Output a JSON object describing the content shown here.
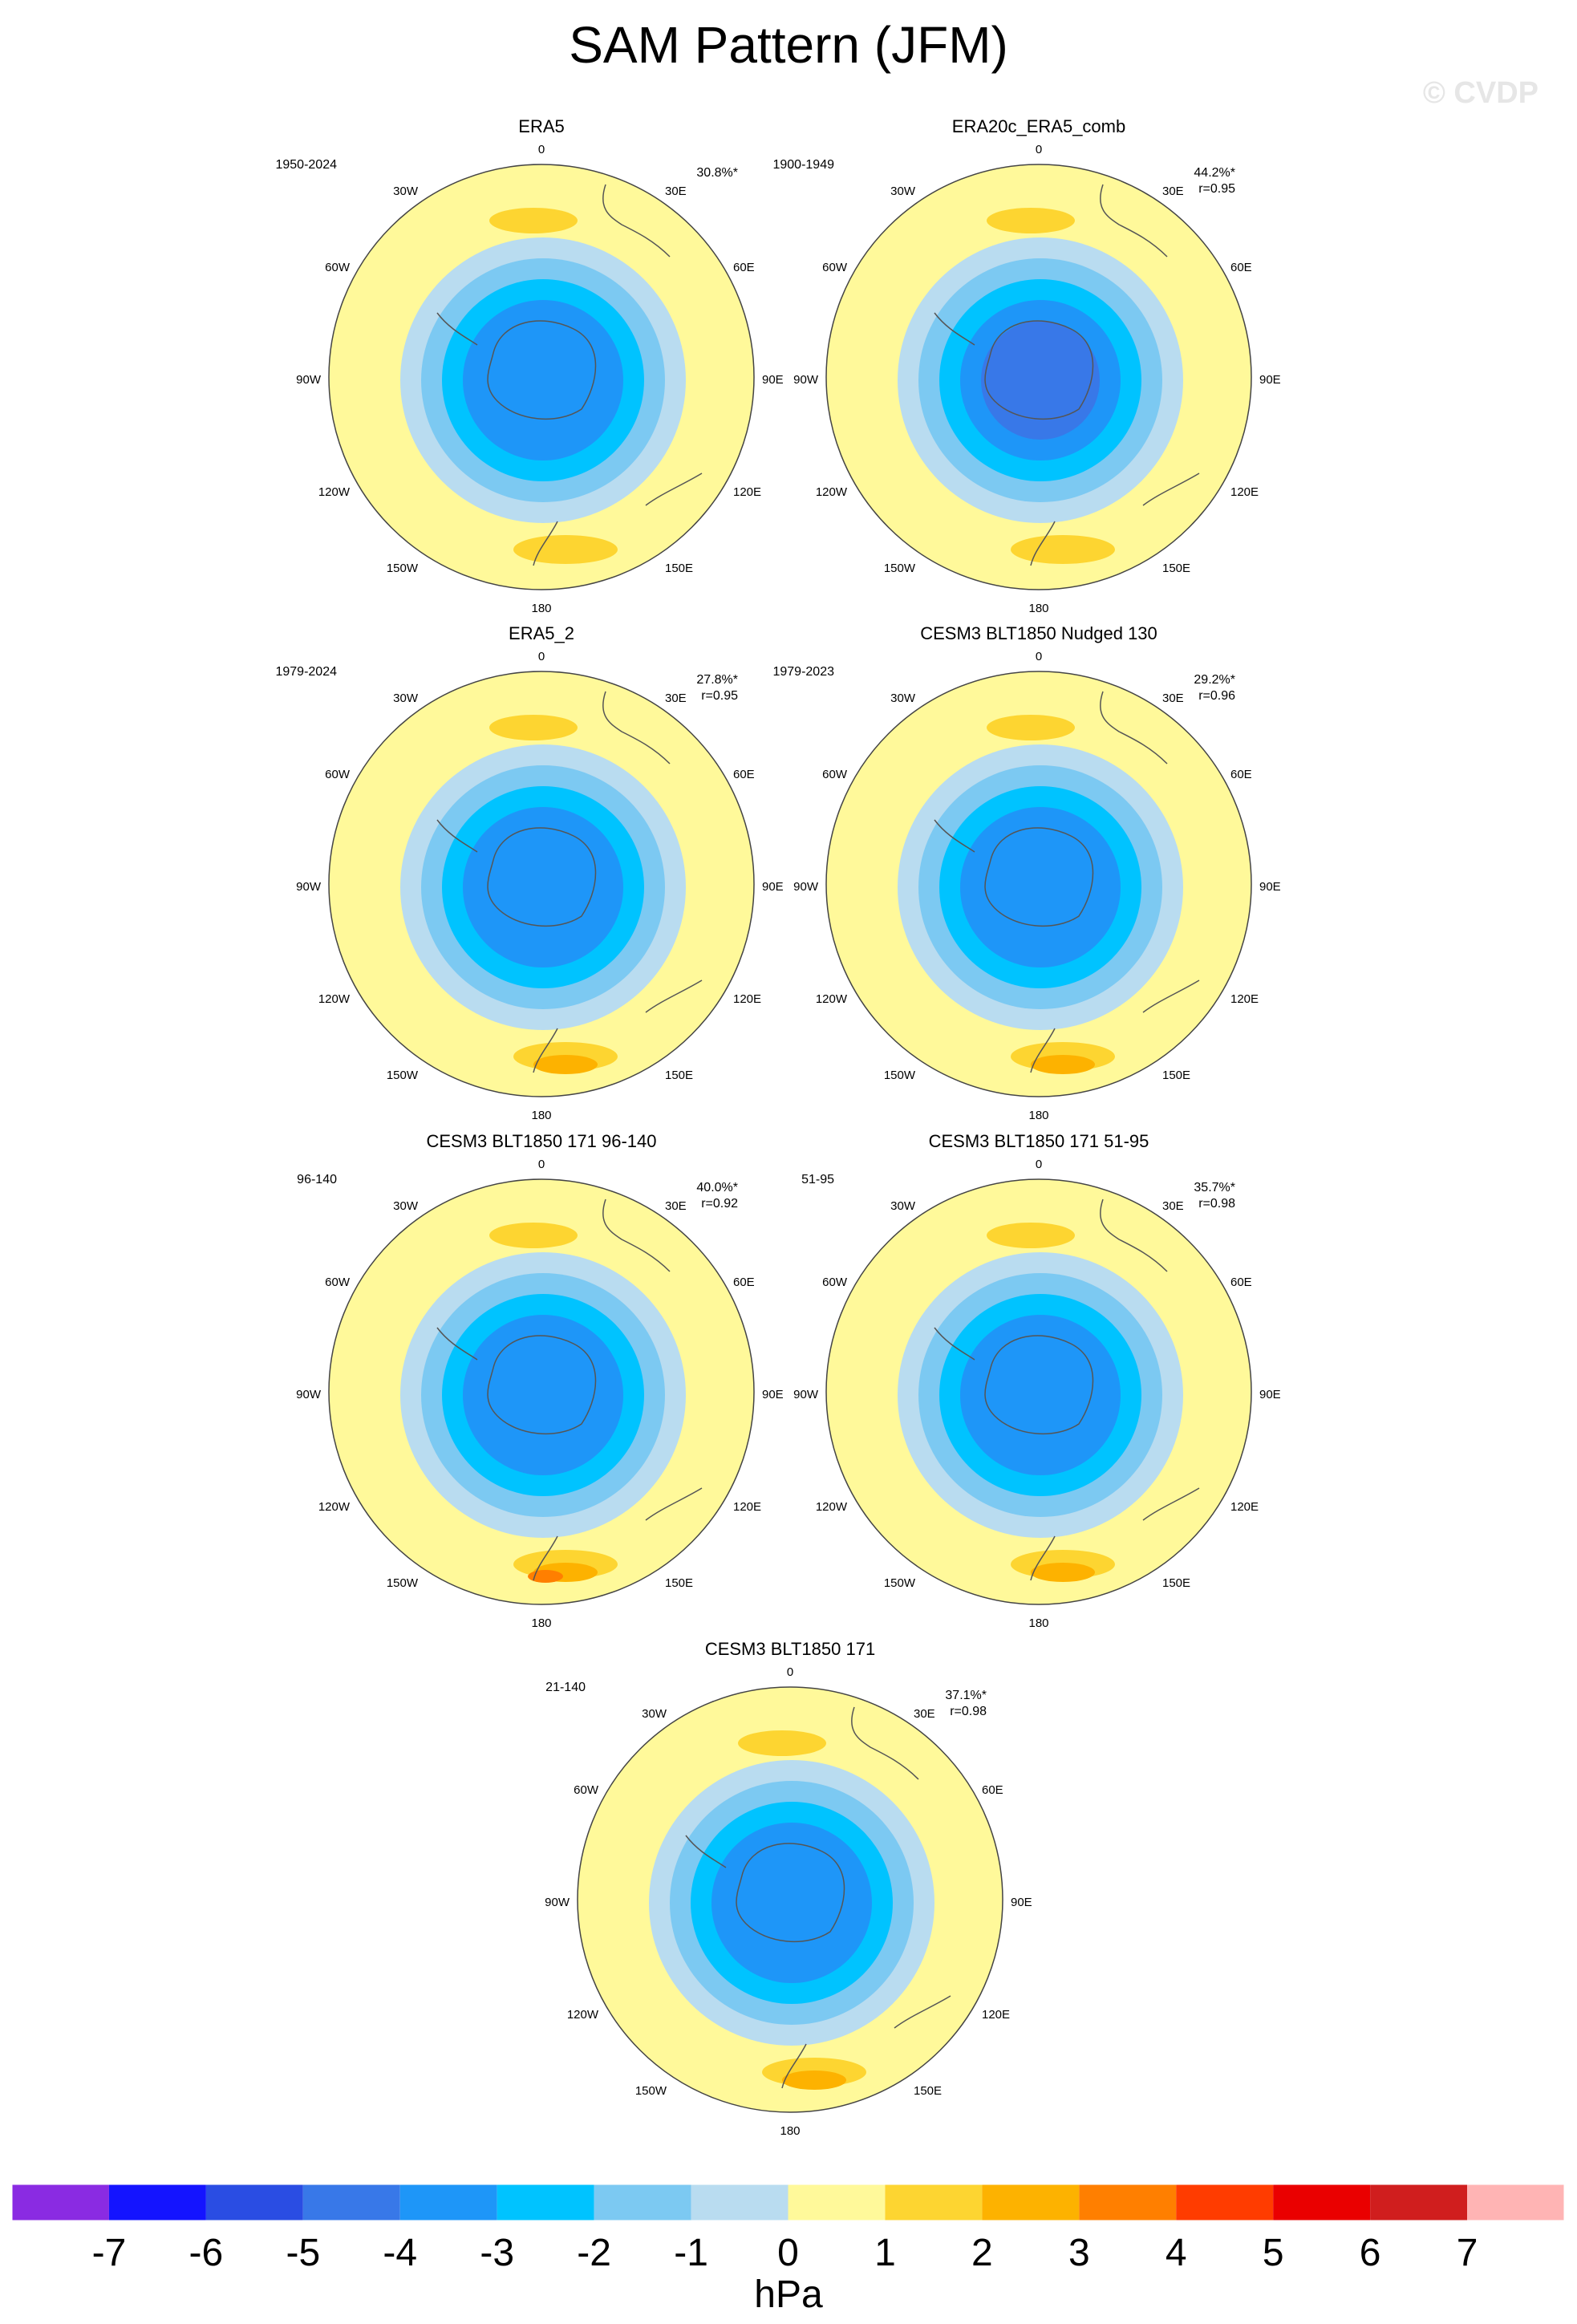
{
  "title": "SAM Pattern (JFM)",
  "watermark": "© CVDP",
  "colors": {
    "land_outline": "#555555",
    "circle_outline": "#444444",
    "levels": [
      "#8a2be2",
      "#1414ff",
      "#2a4de3",
      "#3878e8",
      "#1e96f8",
      "#00c3ff",
      "#7cc9f2",
      "#b9dcf0",
      "#fff99a",
      "#fdd531",
      "#fdb200",
      "#ff7f00",
      "#ff3c00",
      "#ea0000",
      "#d01e1e",
      "#ffb4b4"
    ]
  },
  "chart_data": {
    "type": "heatmap",
    "projection": "south-polar-stereographic",
    "variable": "SAM Pattern",
    "season": "JFM",
    "units": "hPa",
    "colorbar": {
      "label": "hPa",
      "ticks": [
        "-7",
        "-6",
        "-5",
        "-4",
        "-3",
        "-2",
        "-1",
        "0",
        "1",
        "2",
        "3",
        "4",
        "5",
        "6",
        "7"
      ],
      "levels": [
        -7,
        -6,
        -5,
        -4,
        -3,
        -2,
        -1,
        0,
        1,
        2,
        3,
        4,
        5,
        6,
        7
      ]
    },
    "map_labels": {
      "top": "0",
      "bottom": "180",
      "left": "90W",
      "right": "90E",
      "upper_left": "30W",
      "upper_right": "30E",
      "mid_left_upper": "60W",
      "mid_right_upper": "60E",
      "mid_left_lower": "120W",
      "mid_right_lower": "120E",
      "low_left": "150W",
      "low_right": "150E"
    },
    "panels": [
      {
        "name": "ERA5",
        "years": "1950-2024",
        "pct": "30.8%*",
        "corr": "",
        "min_value": -4,
        "max_value": 1
      },
      {
        "name": "ERA20c_ERA5_comb",
        "years": "1900-1949",
        "pct": "44.2%*",
        "corr": "r=0.95",
        "min_value": -5,
        "max_value": 1
      },
      {
        "name": "ERA5_2",
        "years": "1979-2024",
        "pct": "27.8%*",
        "corr": "r=0.95",
        "min_value": -4,
        "max_value": 2
      },
      {
        "name": "CESM3 BLT1850 Nudged 130",
        "years": "1979-2023",
        "pct": "29.2%*",
        "corr": "r=0.96",
        "min_value": -4,
        "max_value": 2
      },
      {
        "name": "CESM3 BLT1850 171 96-140",
        "years": "96-140",
        "pct": "40.0%*",
        "corr": "r=0.92",
        "min_value": -4,
        "max_value": 3
      },
      {
        "name": "CESM3 BLT1850 171 51-95",
        "years": "51-95",
        "pct": "35.7%*",
        "corr": "r=0.98",
        "min_value": -4,
        "max_value": 2
      },
      {
        "name": "CESM3 BLT1850 171",
        "years": "21-140",
        "pct": "37.1%*",
        "corr": "r=0.98",
        "min_value": -4,
        "max_value": 2
      }
    ]
  }
}
